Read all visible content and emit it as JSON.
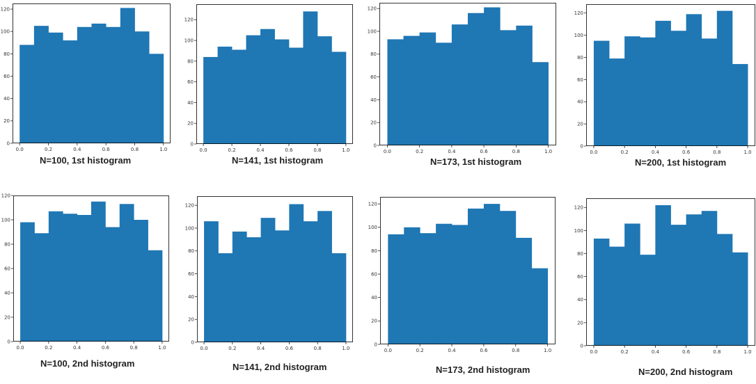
{
  "chart_data": [
    {
      "type": "bar",
      "title": "N=100, 1st histogram",
      "xlim": [
        0,
        1
      ],
      "ylim": [
        0,
        125
      ],
      "xticks": [
        "0.0",
        "0.2",
        "0.4",
        "0.6",
        "0.8",
        "1.0"
      ],
      "yticks": [
        "0",
        "20",
        "40",
        "60",
        "80",
        "100",
        "120"
      ],
      "bin_edges": [
        0,
        0.1,
        0.2,
        0.3,
        0.4,
        0.5,
        0.6,
        0.7,
        0.8,
        0.9,
        1.0
      ],
      "values": [
        88,
        105,
        99,
        92,
        104,
        107,
        104,
        121,
        100,
        80
      ],
      "color": "#1f77b4"
    },
    {
      "type": "bar",
      "title": "N=141, 1st histogram",
      "xlim": [
        0,
        1
      ],
      "ylim": [
        0,
        135
      ],
      "xticks": [
        "0.0",
        "0.2",
        "0.4",
        "0.6",
        "0.8",
        "1.0"
      ],
      "yticks": [
        "0",
        "20",
        "40",
        "60",
        "80",
        "100",
        "120"
      ],
      "bin_edges": [
        0,
        0.1,
        0.2,
        0.3,
        0.4,
        0.5,
        0.6,
        0.7,
        0.8,
        0.9,
        1.0
      ],
      "values": [
        84,
        94,
        91,
        105,
        111,
        101,
        93,
        128,
        104,
        89
      ],
      "color": "#1f77b4"
    },
    {
      "type": "bar",
      "title": "N=173, 1st histogram",
      "xlim": [
        0,
        1
      ],
      "ylim": [
        0,
        125
      ],
      "xticks": [
        "0.0",
        "0.2",
        "0.4",
        "0.6",
        "0.8",
        "1.0"
      ],
      "yticks": [
        "0",
        "20",
        "40",
        "60",
        "80",
        "100",
        "120"
      ],
      "bin_edges": [
        0,
        0.1,
        0.2,
        0.3,
        0.4,
        0.5,
        0.6,
        0.7,
        0.8,
        0.9,
        1.0
      ],
      "values": [
        93,
        96,
        99,
        90,
        106,
        116,
        121,
        101,
        105,
        73
      ],
      "color": "#1f77b4"
    },
    {
      "type": "bar",
      "title": "N=200, 1st histogram",
      "xlim": [
        0,
        1
      ],
      "ylim": [
        0,
        128
      ],
      "xticks": [
        "0.0",
        "0.2",
        "0.4",
        "0.6",
        "0.8",
        "1.0"
      ],
      "yticks": [
        "0",
        "20",
        "40",
        "60",
        "80",
        "100",
        "120"
      ],
      "bin_edges": [
        0,
        0.1,
        0.2,
        0.3,
        0.4,
        0.5,
        0.6,
        0.7,
        0.8,
        0.9,
        1.0
      ],
      "values": [
        95,
        79,
        99,
        98,
        113,
        104,
        119,
        97,
        122,
        74
      ],
      "color": "#1f77b4"
    },
    {
      "type": "bar",
      "title": "N=100, 2nd histogram",
      "xlim": [
        0,
        1
      ],
      "ylim": [
        0,
        120
      ],
      "xticks": [
        "0.0",
        "0.2",
        "0.4",
        "0.6",
        "0.8",
        "1.0"
      ],
      "yticks": [
        "0",
        "20",
        "40",
        "60",
        "80",
        "100",
        "120"
      ],
      "bin_edges": [
        0,
        0.1,
        0.2,
        0.3,
        0.4,
        0.5,
        0.6,
        0.7,
        0.8,
        0.9,
        1.0
      ],
      "values": [
        98,
        89,
        107,
        105,
        104,
        115,
        94,
        113,
        100,
        75
      ],
      "color": "#1f77b4"
    },
    {
      "type": "bar",
      "title": "N=141, 2nd histogram",
      "xlim": [
        0,
        1
      ],
      "ylim": [
        0,
        128
      ],
      "xticks": [
        "0.0",
        "0.2",
        "0.4",
        "0.6",
        "0.8",
        "1.0"
      ],
      "yticks": [
        "0",
        "20",
        "40",
        "60",
        "80",
        "100",
        "120"
      ],
      "bin_edges": [
        0,
        0.1,
        0.2,
        0.3,
        0.4,
        0.5,
        0.6,
        0.7,
        0.8,
        0.9,
        1.0
      ],
      "values": [
        106,
        78,
        97,
        92,
        109,
        98,
        121,
        106,
        115,
        78
      ],
      "color": "#1f77b4"
    },
    {
      "type": "bar",
      "title": "N=173, 2nd histogram",
      "xlim": [
        0,
        1
      ],
      "ylim": [
        0,
        126
      ],
      "xticks": [
        "0.0",
        "0.2",
        "0.4",
        "0.6",
        "0.8",
        "1.0"
      ],
      "yticks": [
        "0",
        "20",
        "40",
        "60",
        "80",
        "100",
        "120"
      ],
      "bin_edges": [
        0,
        0.1,
        0.2,
        0.3,
        0.4,
        0.5,
        0.6,
        0.7,
        0.8,
        0.9,
        1.0
      ],
      "values": [
        94,
        100,
        95,
        103,
        102,
        116,
        120,
        114,
        91,
        65
      ],
      "color": "#1f77b4"
    },
    {
      "type": "bar",
      "title": "N=200, 2nd histogram",
      "xlim": [
        0,
        1
      ],
      "ylim": [
        0,
        128
      ],
      "xticks": [
        "0.0",
        "0.2",
        "0.4",
        "0.6",
        "0.8",
        "1.0"
      ],
      "yticks": [
        "0",
        "20",
        "40",
        "60",
        "80",
        "100",
        "120"
      ],
      "bin_edges": [
        0,
        0.1,
        0.2,
        0.3,
        0.4,
        0.5,
        0.6,
        0.7,
        0.8,
        0.9,
        1.0
      ],
      "values": [
        93,
        86,
        106,
        79,
        122,
        105,
        114,
        117,
        97,
        81
      ],
      "color": "#1f77b4"
    }
  ]
}
